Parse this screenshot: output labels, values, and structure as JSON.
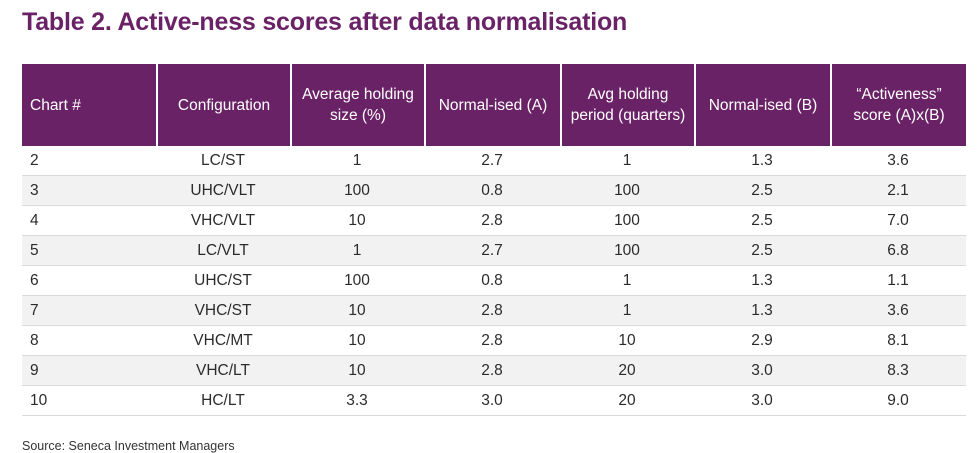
{
  "title": "Table 2. Active-ness scores after data normalisation",
  "table": {
    "headers": [
      "Chart #",
      "Configuration",
      "Average holding size (%)",
      "Normal-ised (A)",
      "Avg holding period (quarters)",
      "Normal-ised (B)",
      "“Activeness” score (A)x(B)"
    ],
    "rows": [
      [
        "2",
        "LC/ST",
        "1",
        "2.7",
        "1",
        "1.3",
        "3.6"
      ],
      [
        "3",
        "UHC/VLT",
        "100",
        "0.8",
        "100",
        "2.5",
        "2.1"
      ],
      [
        "4",
        "VHC/VLT",
        "10",
        "2.8",
        "100",
        "2.5",
        "7.0"
      ],
      [
        "5",
        "LC/VLT",
        "1",
        "2.7",
        "100",
        "2.5",
        "6.8"
      ],
      [
        "6",
        "UHC/ST",
        "100",
        "0.8",
        "1",
        "1.3",
        "1.1"
      ],
      [
        "7",
        "VHC/ST",
        "10",
        "2.8",
        "1",
        "1.3",
        "3.6"
      ],
      [
        "8",
        "VHC/MT",
        "10",
        "2.8",
        "10",
        "2.9",
        "8.1"
      ],
      [
        "9",
        "VHC/LT",
        "10",
        "2.8",
        "20",
        "3.0",
        "8.3"
      ],
      [
        "10",
        "HC/LT",
        "3.3",
        "3.0",
        "20",
        "3.0",
        "9.0"
      ]
    ]
  },
  "source": "Source: Seneca Investment Managers",
  "colors": {
    "header_bg": "#6a2266",
    "title": "#6a2266",
    "alt_row": "#f2f2f2"
  }
}
